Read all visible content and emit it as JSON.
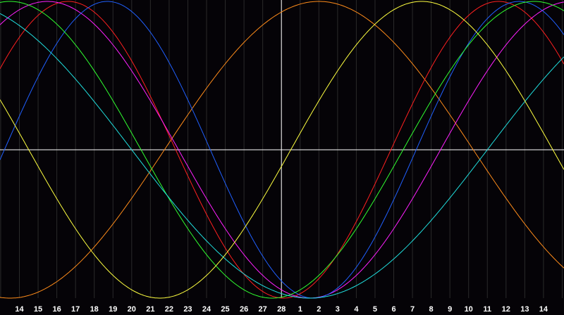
{
  "chart_data": {
    "type": "line",
    "title": "",
    "xlabel": "",
    "ylabel": "",
    "x_tick_labels": [
      "14",
      "15",
      "16",
      "17",
      "18",
      "19",
      "20",
      "21",
      "22",
      "23",
      "24",
      "25",
      "26",
      "27",
      "28",
      "1",
      "2",
      "3",
      "4",
      "5",
      "6",
      "7",
      "8",
      "9",
      "10",
      "11",
      "12",
      "13",
      "14"
    ],
    "highlight_tick_index": 14,
    "ylim": [
      -1,
      1
    ],
    "grid": true,
    "colors": {
      "background": "#050307",
      "gridline": "#2a2a2a",
      "axis": "#ffffff",
      "tick_text": "#ffffff"
    },
    "series": [
      {
        "color": "#ff8c1a",
        "peak_day_index": 16,
        "period_days": 33
      },
      {
        "color": "#ff2020",
        "peak_day_index": 2.6,
        "period_days": 23
      },
      {
        "color": "#ff20ff",
        "peak_day_index": 1.5,
        "period_days": 28
      },
      {
        "color": "#2060ff",
        "peak_day_index": 4.7,
        "period_days": 22
      },
      {
        "color": "#30ff30",
        "peak_day_index": -0.5,
        "period_days": 28
      },
      {
        "color": "#20e0e0",
        "peak_day_index": -3.5,
        "period_days": 38
      },
      {
        "color": "#ffff40",
        "peak_day_index": -6.5,
        "period_days": 28
      }
    ]
  }
}
